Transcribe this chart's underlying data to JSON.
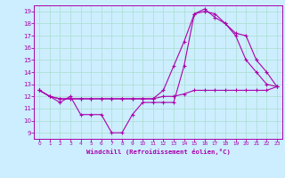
{
  "xlabel": "Windchill (Refroidissement éolien,°C)",
  "bg_color": "#cceeff",
  "grid_color": "#aaddcc",
  "line_color": "#aa00aa",
  "xmin": 0,
  "xmax": 23,
  "ymin": 9,
  "ymax": 19,
  "xticks": [
    0,
    1,
    2,
    3,
    4,
    5,
    6,
    7,
    8,
    9,
    10,
    11,
    12,
    13,
    14,
    15,
    16,
    17,
    18,
    19,
    20,
    21,
    22,
    23
  ],
  "yticks": [
    9,
    10,
    11,
    12,
    13,
    14,
    15,
    16,
    17,
    18,
    19
  ],
  "line1_x": [
    0,
    1,
    2,
    3,
    4,
    5,
    6,
    7,
    8,
    9,
    10,
    11,
    12,
    13,
    14,
    15,
    16,
    17,
    18,
    19,
    20,
    21,
    22,
    23
  ],
  "line1_y": [
    12.5,
    12.0,
    11.5,
    12.0,
    10.5,
    10.5,
    10.5,
    9.0,
    9.0,
    10.5,
    11.5,
    11.5,
    11.5,
    11.5,
    14.5,
    18.8,
    19.0,
    18.8,
    18.0,
    17.0,
    15.0,
    14.0,
    13.0,
    12.8
  ],
  "line2_x": [
    0,
    1,
    2,
    3,
    4,
    5,
    6,
    7,
    8,
    9,
    10,
    11,
    12,
    13,
    14,
    15,
    16,
    17,
    18,
    19,
    20,
    21,
    22,
    23
  ],
  "line2_y": [
    12.5,
    12.0,
    11.8,
    11.8,
    11.8,
    11.8,
    11.8,
    11.8,
    11.8,
    11.8,
    11.8,
    11.8,
    12.0,
    12.0,
    12.2,
    12.5,
    12.5,
    12.5,
    12.5,
    12.5,
    12.5,
    12.5,
    12.5,
    12.8
  ],
  "line3_x": [
    0,
    1,
    2,
    3,
    4,
    5,
    6,
    7,
    8,
    9,
    10,
    11,
    12,
    13,
    14,
    15,
    16,
    17,
    18,
    19,
    20,
    21,
    22,
    23
  ],
  "line3_y": [
    12.5,
    12.0,
    11.8,
    11.8,
    11.8,
    11.8,
    11.8,
    11.8,
    11.8,
    11.8,
    11.8,
    11.8,
    12.5,
    14.5,
    16.5,
    18.8,
    19.2,
    18.5,
    18.0,
    17.2,
    17.0,
    15.0,
    14.0,
    12.8
  ]
}
